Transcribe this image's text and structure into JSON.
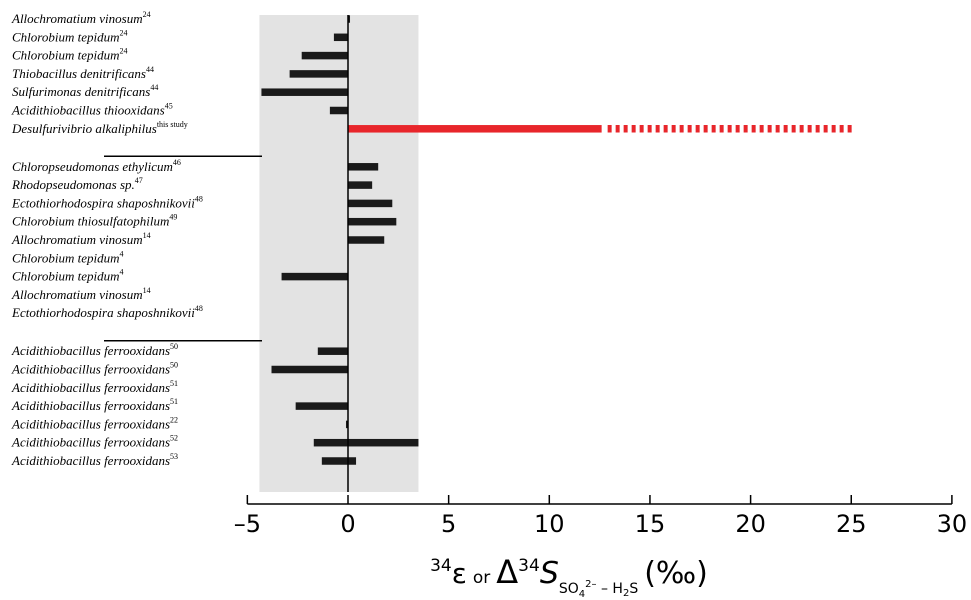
{
  "chart_data": {
    "type": "bar",
    "orientation": "horizontal",
    "xlim": [
      -5,
      30
    ],
    "xticks": [
      -5,
      0,
      5,
      10,
      15,
      20,
      25,
      30
    ],
    "xtick_labels": [
      "–5",
      "0",
      "5",
      "10",
      "15",
      "20",
      "25",
      "30"
    ],
    "shaded_range": [
      -4.4,
      3.5
    ],
    "xlabel": {
      "p1_sup": "34",
      "p1_main": "ε",
      "p_or": "or",
      "p_delta": "Δ",
      "p2_sup": "34",
      "p_S": "S",
      "sub_a": "SO",
      "sub_b": "4",
      "sub_c": "2–",
      "sub_d": " – H",
      "sub_e": "2",
      "sub_f": "S",
      "unit": "(‰)"
    },
    "groups": [
      {
        "rows": [
          {
            "name": "Allochromatium vinosum",
            "ref": "24",
            "value": 0.1
          },
          {
            "name": "Chlorobium tepidum",
            "ref": "24",
            "value": -0.7
          },
          {
            "name": "Chlorobium tepidum",
            "ref": "24",
            "value": -2.3
          },
          {
            "name": "Thiobacillus denitrificans",
            "ref": "44",
            "value": -2.9
          },
          {
            "name": "Sulfurimonas denitrificans",
            "ref": "44",
            "value": -4.3
          },
          {
            "name": "Acidithiobacillus thiooxidans",
            "ref": "45",
            "value": -0.9
          },
          {
            "name": "Desulfurivibrio alkaliphilus",
            "ref": "this study",
            "value": 12.6,
            "extends_to": 25.1,
            "highlight": "#e8262b"
          }
        ]
      },
      {
        "rows": [
          {
            "name": "Chloropseudomonas ethylicum",
            "ref": "46",
            "value": 1.5
          },
          {
            "name": "Rhodopseudomonas sp.",
            "ref": "47",
            "value": 1.2
          },
          {
            "name": "Ectothiorhodospira shaposhnikovii",
            "ref": "48",
            "value": 2.2
          },
          {
            "name": "Chlorobium thiosulfatophilum",
            "ref": "49",
            "value": 2.4
          },
          {
            "name": "Allochromatium vinosum",
            "ref": "14",
            "value": 1.8
          },
          {
            "name": "Chlorobium tepidum",
            "ref": "4",
            "value": null
          },
          {
            "name": "Chlorobium tepidum",
            "ref": "4",
            "value": -3.3
          },
          {
            "name": "Allochromatium vinosum",
            "ref": "14",
            "value": null
          },
          {
            "name": "Ectothiorhodospira shaposhnikovii",
            "ref": "48",
            "value": null
          }
        ]
      },
      {
        "rows": [
          {
            "name": "Acidithiobacillus ferrooxidans",
            "ref": "50",
            "value": -1.5
          },
          {
            "name": "Acidithiobacillus ferrooxidans",
            "ref": "50",
            "value": -3.8
          },
          {
            "name": "Acidithiobacillus ferrooxidans",
            "ref": "51",
            "value": null
          },
          {
            "name": "Acidithiobacillus ferrooxidans",
            "ref": "51",
            "value": -2.6
          },
          {
            "name": "Acidithiobacillus ferrooxidans",
            "ref": "22",
            "value": -0.1
          },
          {
            "name": "Acidithiobacillus ferrooxidans",
            "ref": "52",
            "value": -1.7,
            "value_end": 3.5
          },
          {
            "name": "Acidithiobacillus ferrooxidans",
            "ref": "53",
            "value": -1.3,
            "value_end": 0.4
          }
        ]
      }
    ],
    "colors": {
      "bar": "#1a1a1a",
      "highlight": "#e8262b",
      "shade": "#e3e3e3",
      "axis": "#000000"
    }
  }
}
